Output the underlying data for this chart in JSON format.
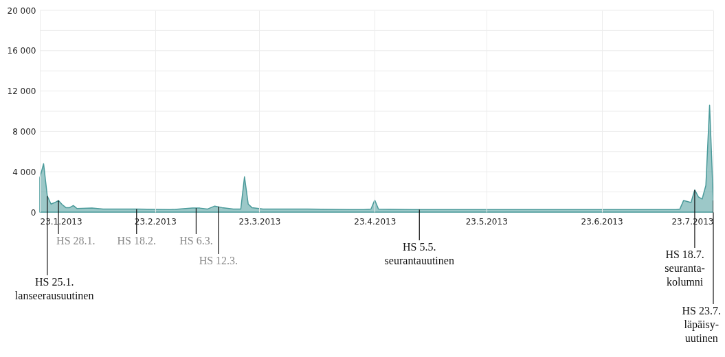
{
  "chart_data": {
    "type": "area",
    "color": "#4a9a9a",
    "grid": true,
    "x": [
      "2013-01-23",
      "2013-01-24",
      "2013-01-25",
      "2013-01-26",
      "2013-01-27",
      "2013-01-28",
      "2013-01-29",
      "2013-01-30",
      "2013-01-31",
      "2013-02-01",
      "2013-02-02",
      "2013-02-06",
      "2013-02-09",
      "2013-02-18",
      "2013-02-27",
      "2013-03-05",
      "2013-03-07",
      "2013-03-09",
      "2013-03-11",
      "2013-03-13",
      "2013-03-16",
      "2013-03-18",
      "2013-03-19",
      "2013-03-20",
      "2013-03-21",
      "2013-03-24",
      "2013-04-05",
      "2013-04-20",
      "2013-04-22",
      "2013-04-23",
      "2013-04-24",
      "2013-05-03",
      "2013-05-22",
      "2013-06-09",
      "2013-06-28",
      "2013-07-13",
      "2013-07-14",
      "2013-07-15",
      "2013-07-17",
      "2013-07-18",
      "2013-07-19",
      "2013-07-20",
      "2013-07-21",
      "2013-07-22",
      "2013-07-23"
    ],
    "values": [
      3400,
      4800,
      1600,
      800,
      950,
      1150,
      750,
      450,
      450,
      650,
      350,
      400,
      300,
      300,
      250,
      400,
      400,
      300,
      600,
      450,
      300,
      300,
      3500,
      800,
      450,
      300,
      300,
      250,
      300,
      1200,
      300,
      250,
      250,
      250,
      250,
      250,
      300,
      1150,
      950,
      2200,
      1500,
      1300,
      2650,
      10600,
      1150
    ],
    "xlim": [
      "2013-01-23",
      "2013-07-23"
    ],
    "xticks": [
      {
        "value": "2013-01-23",
        "label": "23.1.2013"
      },
      {
        "value": "2013-02-23",
        "label": "23.2.2013"
      },
      {
        "value": "2013-03-23",
        "label": "23.3.2013"
      },
      {
        "value": "2013-04-23",
        "label": "23.4.2013"
      },
      {
        "value": "2013-05-23",
        "label": "23.5.2013"
      },
      {
        "value": "2013-06-23",
        "label": "23.6.2013"
      },
      {
        "value": "2013-07-23",
        "label": "23.7.2013"
      }
    ],
    "ylim": [
      0,
      20000
    ],
    "yticks": [
      0,
      {
        "value": 2000,
        "label": null
      },
      {
        "value": 4000,
        "label": "4 000"
      },
      {
        "value": 6000,
        "label": null
      },
      {
        "value": 8000,
        "label": "8 000"
      },
      {
        "value": 10000,
        "label": null
      },
      {
        "value": 12000,
        "label": "12 000"
      },
      {
        "value": 14000,
        "label": null
      },
      {
        "value": 16000,
        "label": "16 000"
      },
      {
        "value": 18000,
        "label": null
      },
      {
        "value": 20000,
        "label": "20 000"
      }
    ],
    "annotations": [
      {
        "text": "HS 25.1.\nlanseerausuutinen",
        "x": "2013-01-25",
        "y": 1600
      },
      {
        "text": "HS 28.1.",
        "x": "2013-01-28",
        "y": 1150
      },
      {
        "text": "HS 18.2.",
        "x": "2013-02-18",
        "y": 300
      },
      {
        "text": "HS 6.3.",
        "x": "2013-03-06",
        "y": 400
      },
      {
        "text": "HS 12.3.",
        "x": "2013-03-12",
        "y": 550
      },
      {
        "text": "HS 5.5.\nseurantauutinen",
        "x": "2013-05-05",
        "y": 250
      },
      {
        "text": "HS 18.7.\nseuranta-\nkolumni",
        "x": "2013-07-18",
        "y": 2200
      },
      {
        "text": "HS 23.7.\nläpäisy-\nuutinen",
        "x": "2013-07-23",
        "y": 1150
      }
    ]
  }
}
